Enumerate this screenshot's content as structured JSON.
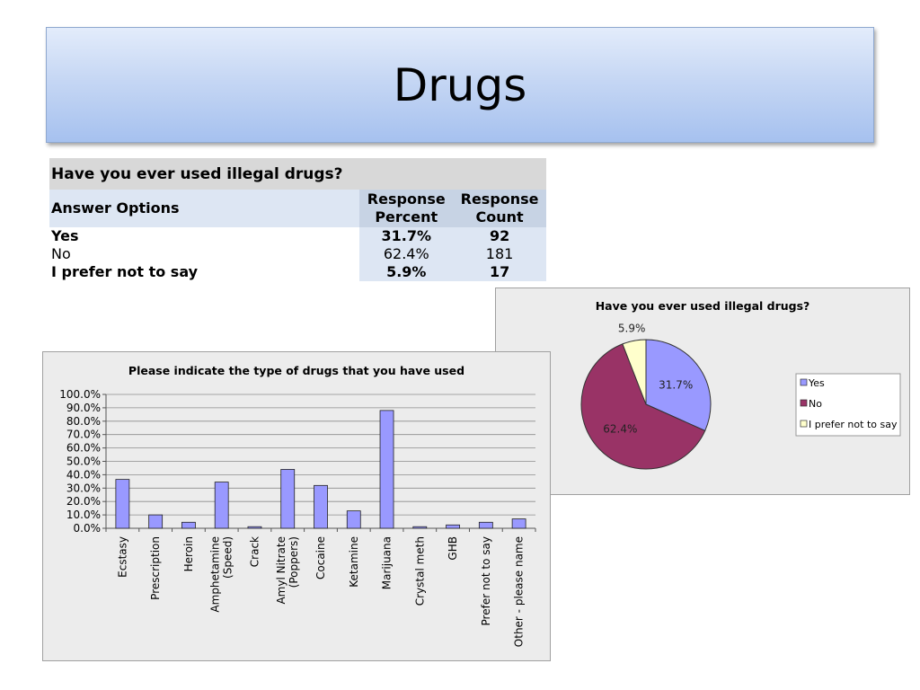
{
  "slide": {
    "title": "Drugs"
  },
  "table": {
    "question": "Have you ever used illegal drugs?",
    "headers": {
      "options": "Answer Options",
      "percent": [
        "Response",
        "Percent"
      ],
      "count": [
        "Response",
        "Count"
      ]
    },
    "rows": [
      {
        "option": "Yes",
        "percent": "31.7%",
        "count": "92",
        "bold": true
      },
      {
        "option": "No",
        "percent": "62.4%",
        "count": "181",
        "bold": false
      },
      {
        "option": "I prefer not to say",
        "percent": "5.9%",
        "count": "17",
        "bold": true
      }
    ]
  },
  "chart_data": [
    {
      "type": "bar",
      "title": "Please indicate the type of drugs that you have used",
      "categories": [
        "Ecstasy",
        "Prescription",
        "Heroin",
        "Amphetamine (Speed)",
        "Crack",
        "Amyl Nitrate (Poppers)",
        "Cocaine",
        "Ketamine",
        "Marijuana",
        "Crystal meth",
        "GHB",
        "Prefer not to say",
        "Other - please name"
      ],
      "category_lines": [
        [
          "Ecstasy"
        ],
        [
          "Prescription"
        ],
        [
          "Heroin"
        ],
        [
          "Amphetamine",
          "(Speed)"
        ],
        [
          "Crack"
        ],
        [
          "Amyl Nitrate",
          "(Poppers)"
        ],
        [
          "Cocaine"
        ],
        [
          "Ketamine"
        ],
        [
          "Marijuana"
        ],
        [
          "Crystal meth"
        ],
        [
          "GHB"
        ],
        [
          "Prefer not to say"
        ],
        [
          "Other - please name"
        ]
      ],
      "values": [
        36.5,
        10.0,
        4.5,
        34.5,
        1.2,
        44.0,
        32.0,
        13.0,
        88.0,
        1.2,
        2.5,
        4.5,
        7.0
      ],
      "ylim": [
        0,
        100
      ],
      "yticks": [
        "0.0%",
        "10.0%",
        "20.0%",
        "30.0%",
        "40.0%",
        "50.0%",
        "60.0%",
        "70.0%",
        "80.0%",
        "90.0%",
        "100.0%"
      ],
      "grid": true,
      "color": "#9999ff",
      "xlabel": "",
      "ylabel": ""
    },
    {
      "type": "pie",
      "title": "Have you ever used illegal drugs?",
      "slices": [
        {
          "label": "Yes",
          "value": 31.7,
          "text": "31.7%",
          "color": "#9999ff"
        },
        {
          "label": "No",
          "value": 62.4,
          "text": "62.4%",
          "color": "#993366"
        },
        {
          "label": "I prefer not to say",
          "value": 5.9,
          "text": "5.9%",
          "color": "#ffffcc"
        }
      ],
      "legend_position": "right"
    }
  ]
}
